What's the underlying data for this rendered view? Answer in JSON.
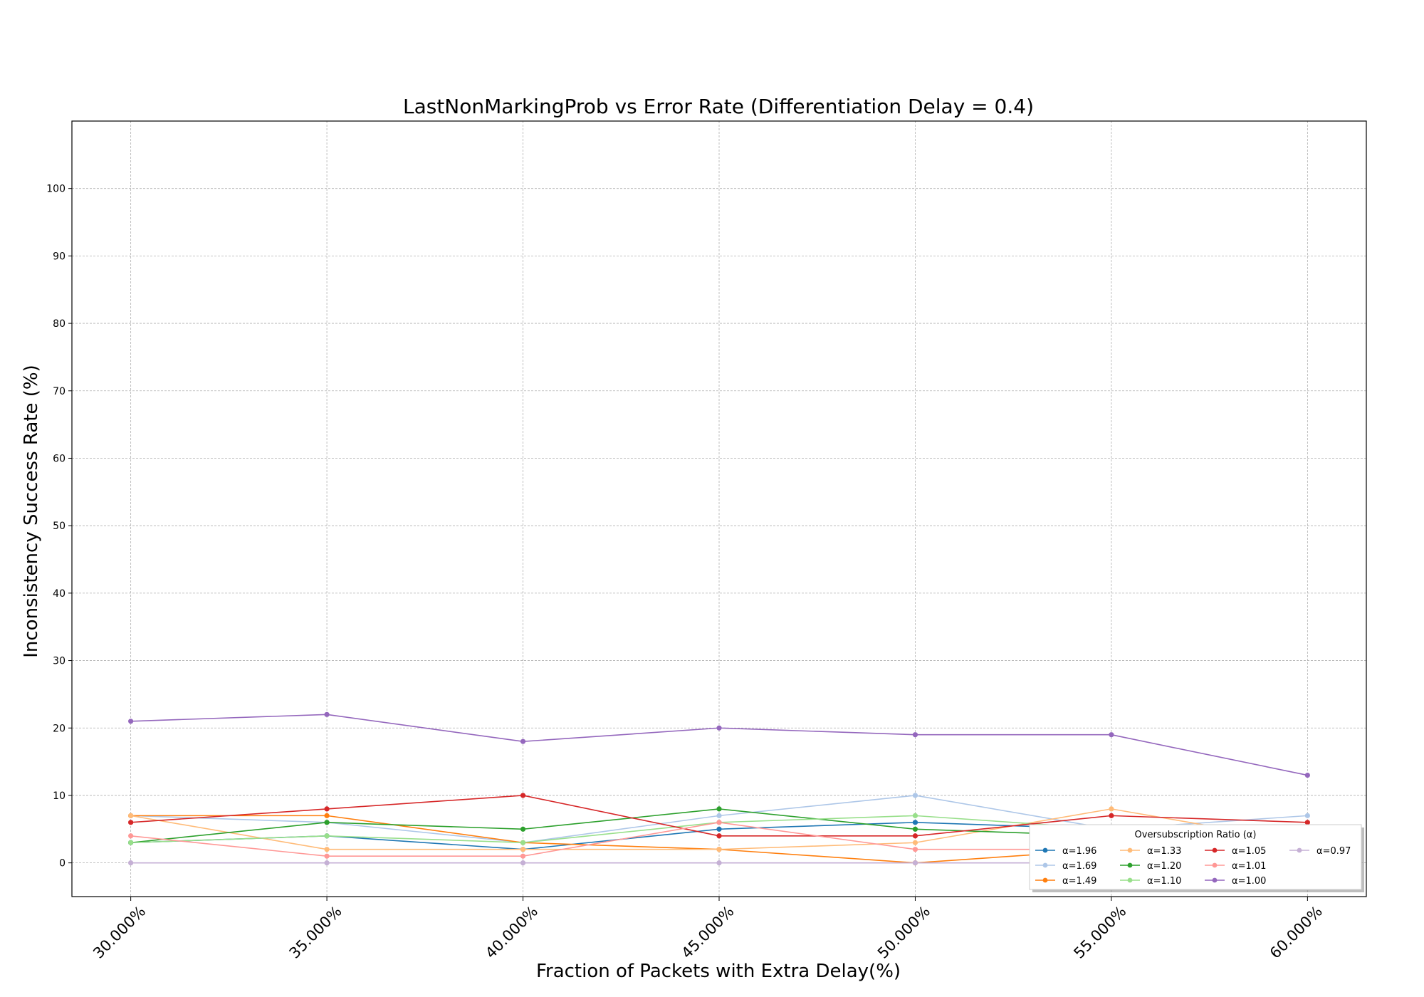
{
  "chart_data": {
    "type": "line",
    "title": "LastNonMarkingProb vs Error Rate (Differentiation Delay = 0.4)",
    "xlabel": "Fraction of Packets with Extra Delay(%)",
    "ylabel": "Inconsistency Success Rate (%)",
    "x": [
      30,
      35,
      40,
      45,
      50,
      55,
      60
    ],
    "x_tick_labels": [
      "30.000%",
      "35.000%",
      "40.000%",
      "45.000%",
      "50.000%",
      "55.000%",
      "60.000%"
    ],
    "xlim": [
      28.5,
      61.5
    ],
    "ylim": [
      -5,
      110
    ],
    "y_ticks": [
      0,
      10,
      20,
      30,
      40,
      50,
      60,
      70,
      80,
      90,
      100
    ],
    "grid": true,
    "legend": {
      "title": "Oversubscription Ratio (α)",
      "placement": "lower-right",
      "columns": 4
    },
    "series": [
      {
        "name": "α=1.96",
        "color": "#1f77b4",
        "values": [
          3,
          4,
          2,
          5,
          6,
          5,
          5
        ]
      },
      {
        "name": "α=1.69",
        "color": "#aec7e8",
        "values": [
          7,
          6,
          3,
          7,
          10,
          5,
          7
        ]
      },
      {
        "name": "α=1.49",
        "color": "#ff7f0e",
        "values": [
          7,
          7,
          3,
          2,
          0,
          2,
          2
        ]
      },
      {
        "name": "α=1.33",
        "color": "#ffbb78",
        "values": [
          7,
          2,
          2,
          2,
          3,
          8,
          3
        ]
      },
      {
        "name": "α=1.20",
        "color": "#2ca02c",
        "values": [
          3,
          6,
          5,
          8,
          5,
          4,
          5
        ]
      },
      {
        "name": "α=1.10",
        "color": "#98df8a",
        "values": [
          3,
          4,
          3,
          6,
          7,
          5,
          5
        ]
      },
      {
        "name": "α=1.05",
        "color": "#d62728",
        "values": [
          6,
          8,
          10,
          4,
          4,
          7,
          6
        ]
      },
      {
        "name": "α=1.01",
        "color": "#ff9896",
        "values": [
          4,
          1,
          1,
          6,
          2,
          2,
          2
        ]
      },
      {
        "name": "α=1.00",
        "color": "#9467bd",
        "values": [
          21,
          22,
          18,
          20,
          19,
          19,
          13
        ]
      },
      {
        "name": "α=0.97",
        "color": "#c5b0d5",
        "values": [
          0,
          0,
          0,
          0,
          0,
          0,
          0
        ]
      }
    ]
  }
}
